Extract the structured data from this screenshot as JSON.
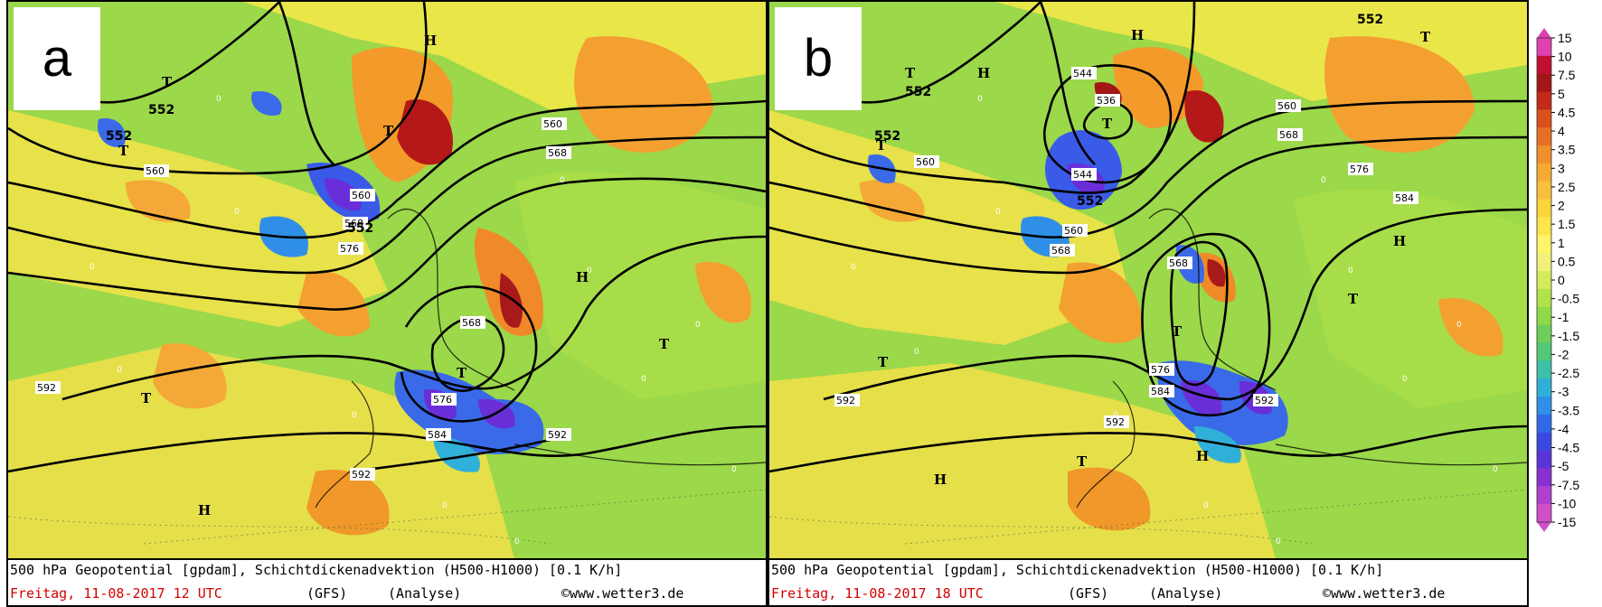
{
  "panels": [
    {
      "letter": "a",
      "footer": {
        "line1": "500 hPa Geopotential [gpdam], Schichtdickenadvektion (H500-H1000) [0.1 K/h]",
        "date": "Freitag, 11-08-2017  12 UTC",
        "model": "(GFS)",
        "run": "(Analyse)",
        "source": "©www.wetter3.de"
      },
      "isolines": [
        "552",
        "560",
        "568",
        "576",
        "584",
        "592"
      ],
      "centers": [
        "T",
        "T",
        "T",
        "T",
        "T",
        "H",
        "H",
        "H"
      ]
    },
    {
      "letter": "b",
      "footer": {
        "line1": "500 hPa Geopotential [gpdam], Schichtdickenadvektion (H500-H1000) [0.1 K/h]",
        "date": "Freitag, 11-08-2017  18 UTC",
        "model": "(GFS)",
        "run": "(Analyse)",
        "source": "©www.wetter3.de"
      },
      "isolines": [
        "536",
        "544",
        "552",
        "560",
        "568",
        "576",
        "584",
        "592"
      ],
      "centers": [
        "T",
        "T",
        "T",
        "T",
        "T",
        "T",
        "H",
        "H",
        "H",
        "H"
      ]
    }
  ],
  "legend": {
    "labels": [
      "15",
      "10",
      "7.5",
      "5",
      "4.5",
      "4",
      "3.5",
      "3",
      "2.5",
      "2",
      "1.5",
      "1",
      "0.5",
      "0",
      "-0.5",
      "-1",
      "-1.5",
      "-2",
      "-2.5",
      "-3",
      "-3.5",
      "-4",
      "-4.5",
      "-5",
      "-7.5",
      "-10",
      "-15"
    ],
    "colors": [
      "#e040b0",
      "#c01030",
      "#a51616",
      "#c22a1a",
      "#d9501d",
      "#e87026",
      "#f0902d",
      "#f5aa32",
      "#f8c03a",
      "#fbd43c",
      "#fde54a",
      "#fff36a",
      "#f0f07a",
      "#d4ec5a",
      "#b0e24a",
      "#8fd84a",
      "#6ccf5a",
      "#50c878",
      "#3cc0a8",
      "#30b0d8",
      "#2f90e8",
      "#2f6ae8",
      "#3a4ae0",
      "#5a34d8",
      "#8a30d0",
      "#b040d0",
      "#d050c8"
    ]
  }
}
